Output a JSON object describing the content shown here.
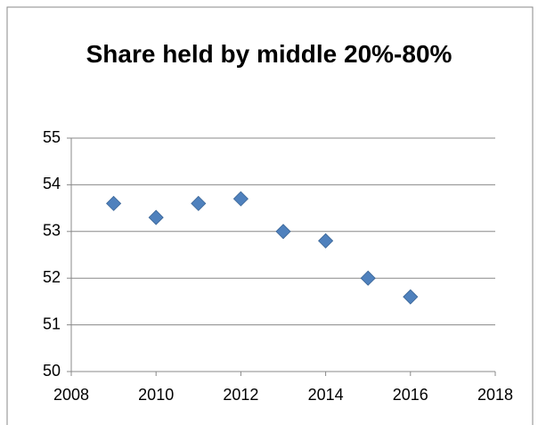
{
  "chart_data": {
    "type": "scatter",
    "title": "Share held by middle 20%-80%",
    "series": [
      {
        "color": "#4f81bd",
        "x": [
          2009,
          2010,
          2011,
          2012,
          2013,
          2014,
          2015,
          2016
        ],
        "values": [
          53.6,
          53.3,
          53.6,
          53.7,
          53.0,
          52.8,
          52.0,
          51.6
        ]
      }
    ],
    "xlim": [
      2008,
      2018
    ],
    "xticks": [
      2008,
      2010,
      2012,
      2014,
      2016,
      2018
    ],
    "ylim": [
      50,
      55
    ],
    "yticks": [
      50,
      51,
      52,
      53,
      54,
      55
    ],
    "grid": true
  }
}
